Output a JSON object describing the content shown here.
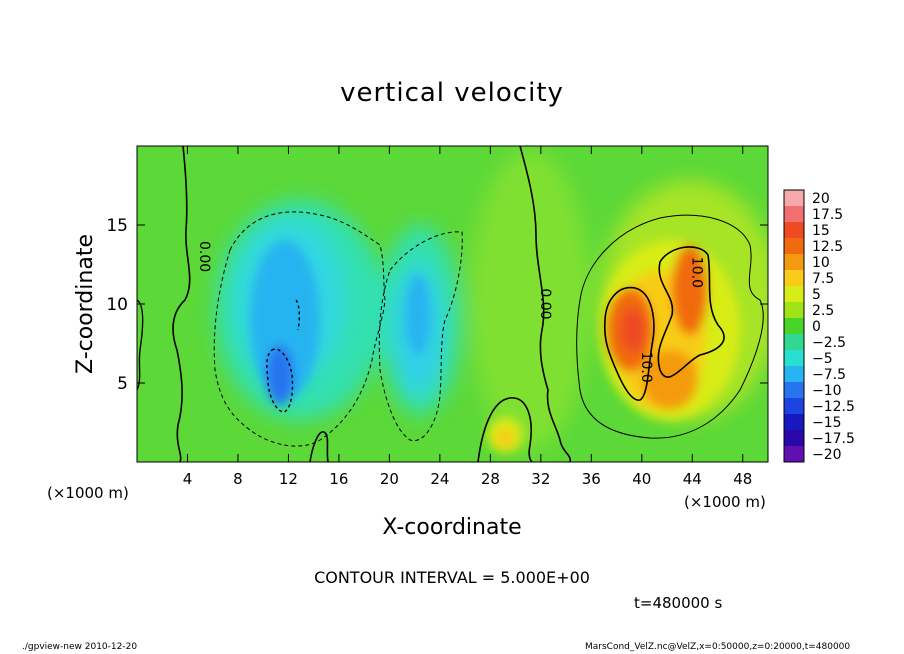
{
  "chart_data": {
    "type": "heatmap",
    "title": "vertical velocity",
    "xlabel": "X-coordinate",
    "ylabel": "Z-coordinate",
    "x_unit": "(×1000 m)",
    "y_unit": "(×1000 m)",
    "xlim": [
      0,
      50
    ],
    "ylim": [
      0,
      20
    ],
    "x_ticks": [
      4,
      8,
      12,
      16,
      20,
      24,
      28,
      32,
      36,
      40,
      44,
      48
    ],
    "y_ticks": [
      5,
      10,
      15
    ],
    "colorbar": {
      "levels": [
        "20",
        "17.5",
        "15",
        "12.5",
        "10",
        "7.5",
        "5",
        "2.5",
        "0",
        "−2.5",
        "−5",
        "−7.5",
        "−10",
        "−12.5",
        "−15",
        "−17.5",
        "−20"
      ],
      "colors": [
        "#f7a8a8",
        "#f07070",
        "#ee4a24",
        "#f06a10",
        "#f59a10",
        "#f8cc18",
        "#d8ec18",
        "#a0e418",
        "#48d428",
        "#30d890",
        "#28e0d0",
        "#28b4f0",
        "#2874f0",
        "#1c44e0",
        "#1818c0",
        "#2808a8",
        "#6010b0"
      ]
    },
    "contour_labels": [
      {
        "text": "0.00",
        "x": 5,
        "z": 13
      },
      {
        "text": "0.00",
        "x": 32,
        "z": 10
      },
      {
        "text": "10.0",
        "x": 44,
        "z": 12
      },
      {
        "text": "10.0",
        "x": 40,
        "z": 6
      }
    ],
    "regions": [
      {
        "name": "downdraft-left",
        "x_center": 12,
        "z_center": 9,
        "value": -7.5
      },
      {
        "name": "downdraft-core",
        "x_center": 11.5,
        "z_center": 5,
        "value": -12.5
      },
      {
        "name": "downdraft-mid",
        "x_center": 22,
        "z_center": 8,
        "value": -5
      },
      {
        "name": "updraft-core-left",
        "x_center": 39.5,
        "z_center": 8.5,
        "value": 15
      },
      {
        "name": "updraft-right-arm",
        "x_center": 43.5,
        "z_center": 10.5,
        "value": 12.5
      },
      {
        "name": "updraft-lower",
        "x_center": 42,
        "z_center": 5,
        "value": 10
      },
      {
        "name": "updraft-small",
        "x_center": 29,
        "z_center": 1.8,
        "value": 7.5
      }
    ]
  },
  "contour_interval": "CONTOUR INTERVAL = 5.000E+00",
  "time_label": "t=480000 s",
  "program_label": "./gpview-new  2010-12-20",
  "file_label": "MarsCond_VelZ.nc@VelZ,x=0:50000,z=0:20000,t=480000"
}
